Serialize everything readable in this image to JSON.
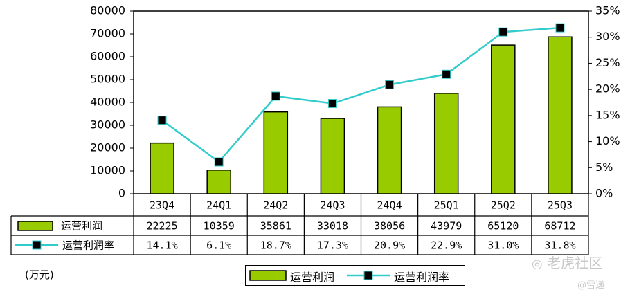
{
  "colors": {
    "bar_fill": "#99cc00",
    "line": "#33cccc",
    "marker": "#000000",
    "watermark": "#c8c8c8"
  },
  "unit_label": "(万元)",
  "watermark": {
    "brand": "老虎社区",
    "author": "@雷递"
  },
  "legend": {
    "bar_label": "运营利润",
    "line_label": "运营利润率"
  },
  "table": {
    "row_labels": [
      "运营利润",
      "运营利润率"
    ],
    "profit_texts": [
      "22225",
      "10359",
      "35861",
      "33018",
      "38056",
      "43979",
      "65120",
      "68712"
    ],
    "margin_texts": [
      "14.1%",
      "6.1%",
      "18.7%",
      "17.3%",
      "20.9%",
      "22.9%",
      "31.0%",
      "31.8%"
    ]
  },
  "chart_data": {
    "type": "bar",
    "categories": [
      "23Q4",
      "24Q1",
      "24Q2",
      "24Q3",
      "24Q4",
      "25Q1",
      "25Q2",
      "25Q3"
    ],
    "series": [
      {
        "name": "运营利润",
        "type": "bar",
        "axis": "left",
        "values": [
          22225,
          10359,
          35861,
          33018,
          38056,
          43979,
          65120,
          68712
        ]
      },
      {
        "name": "运营利润率",
        "type": "line",
        "axis": "right",
        "values": [
          14.1,
          6.1,
          18.7,
          17.3,
          20.9,
          22.9,
          31.0,
          31.8
        ]
      }
    ],
    "ylim": [
      0,
      80000
    ],
    "y_ticks": [
      "0",
      "10000",
      "20000",
      "30000",
      "40000",
      "50000",
      "60000",
      "70000",
      "80000"
    ],
    "y2lim": [
      0,
      35
    ],
    "y2_ticks": [
      "0%",
      "5%",
      "10%",
      "15%",
      "20%",
      "25%",
      "30%",
      "35%"
    ],
    "grid": false,
    "legend_position": "bottom"
  }
}
